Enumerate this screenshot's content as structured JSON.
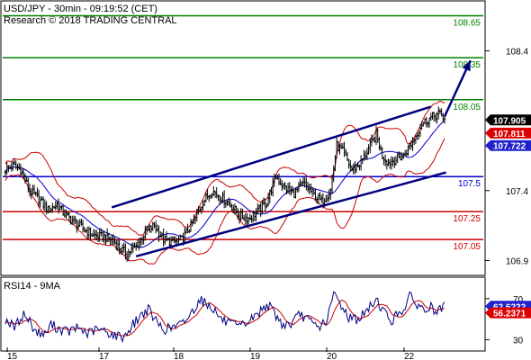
{
  "header": {
    "line1": "USD/JPY - 30min - 09:19:52 (CET)",
    "line2": "Research © 2018 TRADING CENTRAL"
  },
  "chart_data": [
    {
      "type": "candlestick",
      "ylim": [
        106.8,
        108.75
      ],
      "y_ticks": [
        "108.4",
        "107.4",
        "106.9"
      ],
      "x_tick_labels": [
        "15",
        "17",
        "18",
        "19",
        "20",
        "22"
      ],
      "levels": [
        {
          "value": 108.65,
          "label": "108.65",
          "color": "#008000"
        },
        {
          "value": 108.35,
          "label": "108.35",
          "color": "#008000"
        },
        {
          "value": 108.05,
          "label": "108.05",
          "color": "#008000"
        },
        {
          "value": 107.5,
          "label": "107.5",
          "color": "#0000cc"
        },
        {
          "value": 107.25,
          "label": "107.25",
          "color": "#cc0000"
        },
        {
          "value": 107.05,
          "label": "107.05",
          "color": "#cc0000"
        }
      ],
      "price_tags": [
        {
          "value": 107.905,
          "label": "107.905",
          "bg": "#000000",
          "fg": "#ffffff"
        },
        {
          "value": 107.811,
          "label": "107.811",
          "bg": "#dd0000",
          "fg": "#ffffff"
        },
        {
          "value": 107.722,
          "label": "107.722",
          "bg": "#2222cc",
          "fg": "#ffffff"
        }
      ],
      "price_anchors": [
        [
          0,
          107.55
        ],
        [
          5,
          107.58
        ],
        [
          10,
          107.55
        ],
        [
          16,
          107.4
        ],
        [
          22,
          107.34
        ],
        [
          28,
          107.26
        ],
        [
          34,
          107.3
        ],
        [
          40,
          107.22
        ],
        [
          46,
          107.17
        ],
        [
          52,
          107.12
        ],
        [
          58,
          107.08
        ],
        [
          64,
          107.07
        ],
        [
          70,
          107.05
        ],
        [
          76,
          106.98
        ],
        [
          80,
          106.95
        ],
        [
          86,
          107.0
        ],
        [
          92,
          107.1
        ],
        [
          98,
          107.15
        ],
        [
          104,
          107.05
        ],
        [
          110,
          107.03
        ],
        [
          116,
          107.05
        ],
        [
          124,
          107.18
        ],
        [
          130,
          107.32
        ],
        [
          136,
          107.4
        ],
        [
          142,
          107.35
        ],
        [
          148,
          107.3
        ],
        [
          154,
          107.22
        ],
        [
          160,
          107.2
        ],
        [
          166,
          107.25
        ],
        [
          172,
          107.32
        ],
        [
          178,
          107.5
        ],
        [
          184,
          107.42
        ],
        [
          190,
          107.38
        ],
        [
          196,
          107.45
        ],
        [
          202,
          107.38
        ],
        [
          208,
          107.32
        ],
        [
          214,
          107.4
        ],
        [
          218,
          107.72
        ],
        [
          222,
          107.68
        ],
        [
          228,
          107.55
        ],
        [
          234,
          107.6
        ],
        [
          240,
          107.72
        ],
        [
          244,
          107.8
        ],
        [
          248,
          107.65
        ],
        [
          252,
          107.6
        ],
        [
          256,
          107.62
        ],
        [
          262,
          107.65
        ],
        [
          268,
          107.75
        ],
        [
          274,
          107.88
        ],
        [
          280,
          107.92
        ],
        [
          285,
          107.95
        ],
        [
          289,
          107.92
        ]
      ],
      "channel": {
        "upper": [
          [
            70,
            107.28
          ],
          [
            280,
            108.0
          ]
        ],
        "lower": [
          [
            86,
            106.93
          ],
          [
            290,
            107.53
          ]
        ]
      },
      "projection_arrow": {
        "from": [
          289,
          107.93
        ],
        "to": [
          306,
          108.33
        ]
      }
    },
    {
      "type": "line",
      "title": "RSI14 - 9MA",
      "ylim": [
        20,
        90
      ],
      "y_ticks": [
        "70",
        "30"
      ],
      "series_anchors": [
        [
          0,
          50
        ],
        [
          6,
          42
        ],
        [
          12,
          55
        ],
        [
          16,
          48
        ],
        [
          20,
          38
        ],
        [
          26,
          35
        ],
        [
          30,
          45
        ],
        [
          36,
          40
        ],
        [
          42,
          38
        ],
        [
          48,
          42
        ],
        [
          54,
          36
        ],
        [
          60,
          40
        ],
        [
          66,
          38
        ],
        [
          72,
          34
        ],
        [
          78,
          33
        ],
        [
          84,
          45
        ],
        [
          90,
          55
        ],
        [
          94,
          60
        ],
        [
          98,
          50
        ],
        [
          104,
          40
        ],
        [
          110,
          42
        ],
        [
          116,
          45
        ],
        [
          122,
          55
        ],
        [
          128,
          70
        ],
        [
          132,
          65
        ],
        [
          136,
          62
        ],
        [
          142,
          50
        ],
        [
          148,
          45
        ],
        [
          154,
          42
        ],
        [
          160,
          48
        ],
        [
          166,
          55
        ],
        [
          172,
          65
        ],
        [
          176,
          58
        ],
        [
          182,
          45
        ],
        [
          188,
          45
        ],
        [
          194,
          55
        ],
        [
          200,
          48
        ],
        [
          206,
          42
        ],
        [
          212,
          50
        ],
        [
          216,
          75
        ],
        [
          220,
          66
        ],
        [
          226,
          52
        ],
        [
          232,
          50
        ],
        [
          238,
          58
        ],
        [
          244,
          70
        ],
        [
          248,
          60
        ],
        [
          254,
          48
        ],
        [
          258,
          55
        ],
        [
          262,
          60
        ],
        [
          266,
          72
        ],
        [
          270,
          66
        ],
        [
          276,
          58
        ],
        [
          280,
          62
        ],
        [
          284,
          55
        ],
        [
          288,
          62
        ]
      ],
      "tags": [
        {
          "value": 62.6222,
          "label": "62.6222",
          "bg": "#2222cc",
          "fg": "#ffffff"
        },
        {
          "value": 56.2371,
          "label": "56.2371",
          "bg": "#dd0000",
          "fg": "#ffffff"
        }
      ]
    }
  ]
}
